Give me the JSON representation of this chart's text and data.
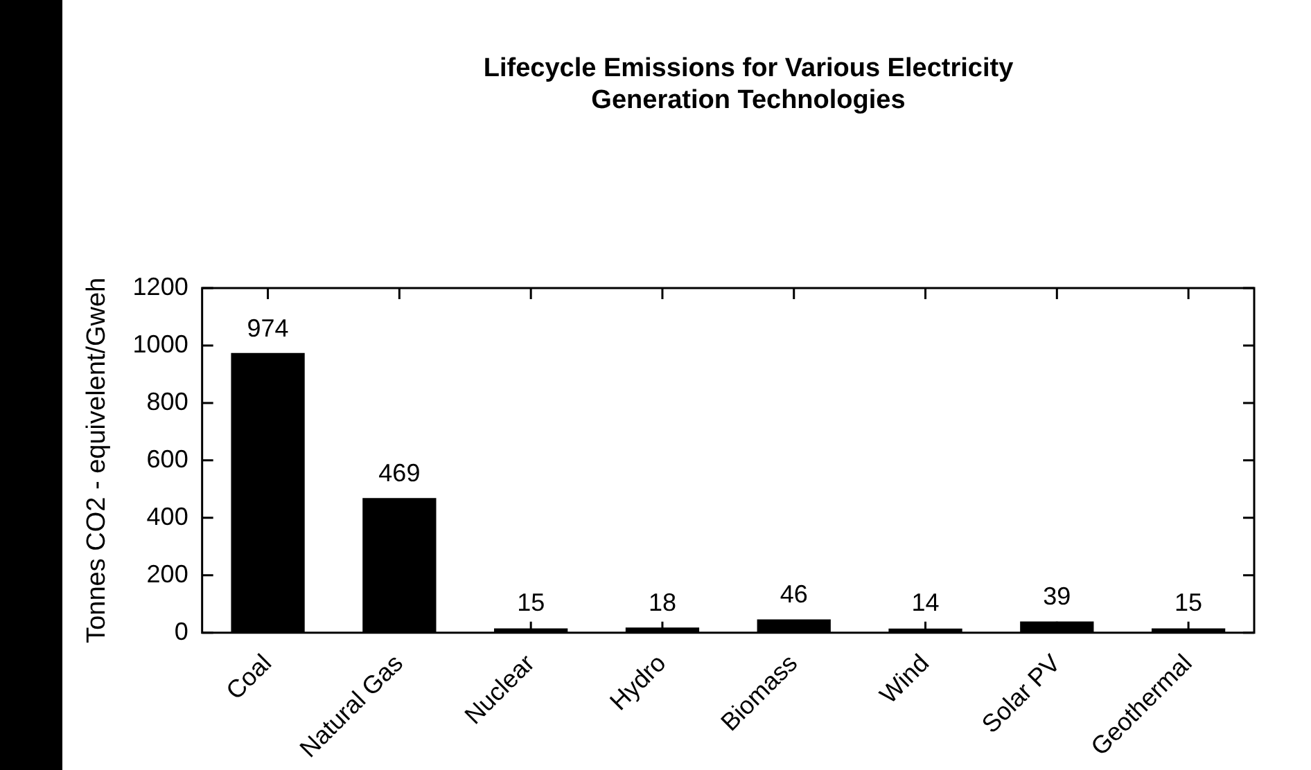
{
  "chart_data": {
    "type": "bar",
    "title": "Lifecycle Emissions for Various Electricity Generation Technologies",
    "ylabel": "Tonnes CO2 - equivelent/Gweh",
    "categories": [
      "Coal",
      "Natural Gas",
      "Nuclear",
      "Hydro",
      "Biomass",
      "Wind",
      "Solar PV",
      "Geothermal"
    ],
    "values": [
      974,
      469,
      15,
      18,
      46,
      14,
      39,
      15
    ],
    "color": "#000000",
    "ylim": [
      0,
      1200
    ],
    "yticks": [
      0,
      200,
      400,
      600,
      800,
      1000,
      1200
    ],
    "grid": false,
    "legend": false,
    "data_labels": true
  }
}
